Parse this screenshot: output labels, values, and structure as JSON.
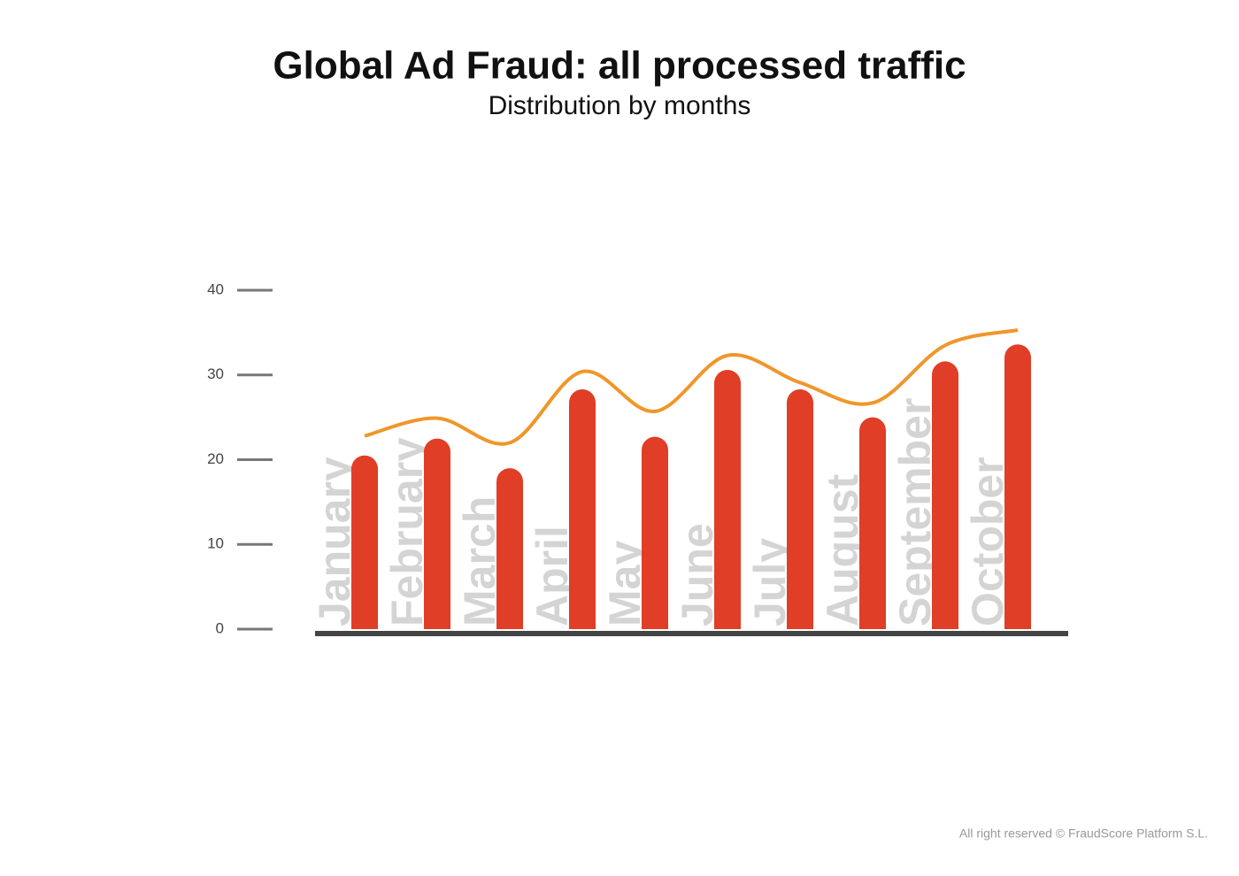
{
  "chart_data": {
    "type": "bar",
    "title": "Global Ad Fraud: all processed traffic",
    "subtitle": "Distribution by months",
    "categories": [
      "January",
      "February",
      "March",
      "April",
      "May",
      "June",
      "July",
      "August",
      "September",
      "October"
    ],
    "series": [
      {
        "color": "#e03e26",
        "values": [
          20.5,
          22.5,
          19,
          28.3,
          22.7,
          30.6,
          28.3,
          25,
          31.6,
          33.6
        ]
      },
      {
        "type": "line",
        "color": "#f0962a",
        "values": [
          22.8,
          24.9,
          22,
          30.4,
          25.7,
          32.3,
          29.1,
          26.7,
          33.5,
          35.3
        ]
      }
    ],
    "ylim": [
      0,
      40
    ],
    "yticks": [
      0,
      10,
      20,
      30,
      40
    ],
    "footer": "All right reserved © FraudScore Platform S.L."
  }
}
